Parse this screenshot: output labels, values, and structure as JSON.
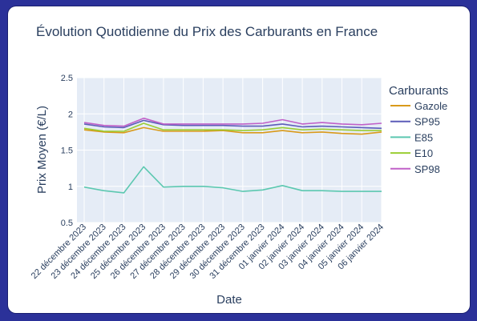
{
  "chart_data": {
    "type": "line",
    "title": "Évolution Quotidienne du Prix des Carburants en France",
    "xlabel": "Date",
    "ylabel": "Prix Moyen (€/L)",
    "ylim": [
      0.5,
      2.5
    ],
    "yticks": [
      "0.5",
      "1",
      "1.5",
      "2",
      "2.5"
    ],
    "grid": true,
    "legend_title": "Carburants",
    "legend_position": "right",
    "categories": [
      "22 décembre 2023",
      "23 décembre 2023",
      "24 décembre 2023",
      "25 décembre 2023",
      "26 décembre 2023",
      "27 décembre 2023",
      "28 décembre 2023",
      "29 décembre 2023",
      "30 décembre 2023",
      "31 décembre 2023",
      "01 janvier 2024",
      "02 janvier 2024",
      "03 janvier 2024",
      "04 janvier 2024",
      "05 janvier 2024",
      "06 janvier 2024"
    ],
    "series": [
      {
        "name": "Gazole",
        "color": "#d99a1a",
        "values": [
          1.78,
          1.75,
          1.74,
          1.81,
          1.76,
          1.76,
          1.76,
          1.77,
          1.74,
          1.74,
          1.77,
          1.74,
          1.75,
          1.73,
          1.72,
          1.75
        ]
      },
      {
        "name": "SP95",
        "color": "#5c5cb8",
        "values": [
          1.86,
          1.82,
          1.81,
          1.91,
          1.85,
          1.84,
          1.84,
          1.84,
          1.83,
          1.83,
          1.86,
          1.82,
          1.83,
          1.82,
          1.81,
          1.8
        ]
      },
      {
        "name": "E85",
        "color": "#5cc8b0",
        "values": [
          0.99,
          0.94,
          0.91,
          1.27,
          0.99,
          1.0,
          1.0,
          0.98,
          0.93,
          0.95,
          1.01,
          0.94,
          0.94,
          0.93,
          0.93,
          0.93
        ]
      },
      {
        "name": "E10",
        "color": "#9acd32",
        "values": [
          1.8,
          1.76,
          1.76,
          1.87,
          1.78,
          1.78,
          1.78,
          1.78,
          1.77,
          1.78,
          1.81,
          1.78,
          1.79,
          1.78,
          1.77,
          1.77
        ]
      },
      {
        "name": "SP98",
        "color": "#c060c8",
        "values": [
          1.88,
          1.84,
          1.83,
          1.94,
          1.86,
          1.86,
          1.86,
          1.86,
          1.86,
          1.87,
          1.92,
          1.86,
          1.88,
          1.86,
          1.85,
          1.87
        ]
      }
    ]
  }
}
